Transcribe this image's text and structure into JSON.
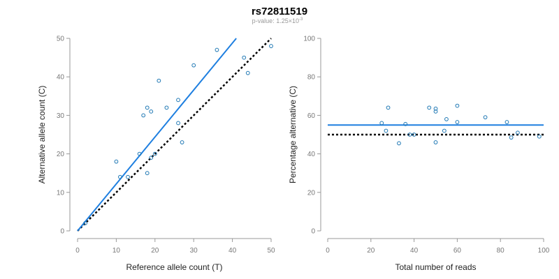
{
  "header": {
    "title": "rs72811519",
    "subtitle_prefix": "p-value: 1.25×10",
    "subtitle_exponent": "-3"
  },
  "colors": {
    "point": "#1f78b4",
    "fit_line": "#1e7fe0",
    "expected_line": "#000000"
  },
  "chart_data": [
    {
      "type": "scatter",
      "xlabel": "Reference allele count (T)",
      "ylabel": "Alternative allele count (C)",
      "xlim": [
        0,
        50
      ],
      "ylim": [
        0,
        50
      ],
      "xticks": [
        0,
        10,
        20,
        30,
        40,
        50
      ],
      "yticks": [
        0,
        10,
        20,
        30,
        40,
        50
      ],
      "points": [
        {
          "x": 2,
          "y": 2
        },
        {
          "x": 10,
          "y": 18
        },
        {
          "x": 11,
          "y": 14
        },
        {
          "x": 13,
          "y": 14
        },
        {
          "x": 16,
          "y": 20
        },
        {
          "x": 17,
          "y": 30
        },
        {
          "x": 18,
          "y": 32
        },
        {
          "x": 18,
          "y": 15
        },
        {
          "x": 19,
          "y": 31
        },
        {
          "x": 19,
          "y": 19
        },
        {
          "x": 20,
          "y": 20
        },
        {
          "x": 21,
          "y": 39
        },
        {
          "x": 23,
          "y": 32
        },
        {
          "x": 26,
          "y": 34
        },
        {
          "x": 26,
          "y": 28
        },
        {
          "x": 27,
          "y": 23
        },
        {
          "x": 30,
          "y": 43
        },
        {
          "x": 36,
          "y": 47
        },
        {
          "x": 43,
          "y": 45
        },
        {
          "x": 44,
          "y": 41
        },
        {
          "x": 50,
          "y": 48
        }
      ],
      "fit_line": {
        "x": [
          0,
          41
        ],
        "y": [
          0,
          50
        ]
      },
      "expected_line": {
        "x": [
          0,
          50
        ],
        "y": [
          0,
          50
        ]
      },
      "grid": false
    },
    {
      "type": "scatter",
      "xlabel": "Total number of reads",
      "ylabel": "Percentage alternative (C)",
      "xlim": [
        0,
        100
      ],
      "ylim": [
        0,
        100
      ],
      "xticks": [
        0,
        20,
        40,
        60,
        80,
        100
      ],
      "yticks": [
        0,
        20,
        40,
        60,
        80,
        100
      ],
      "points": [
        {
          "x": 25,
          "y": 56
        },
        {
          "x": 27,
          "y": 52
        },
        {
          "x": 28,
          "y": 64
        },
        {
          "x": 33,
          "y": 45.5
        },
        {
          "x": 36,
          "y": 55.5
        },
        {
          "x": 38,
          "y": 50
        },
        {
          "x": 40,
          "y": 50
        },
        {
          "x": 47,
          "y": 64
        },
        {
          "x": 50,
          "y": 62
        },
        {
          "x": 50,
          "y": 63.5
        },
        {
          "x": 50,
          "y": 46
        },
        {
          "x": 54,
          "y": 52
        },
        {
          "x": 55,
          "y": 58
        },
        {
          "x": 60,
          "y": 65
        },
        {
          "x": 60,
          "y": 56.5
        },
        {
          "x": 73,
          "y": 59
        },
        {
          "x": 83,
          "y": 56.5
        },
        {
          "x": 85,
          "y": 48.5
        },
        {
          "x": 88,
          "y": 51
        },
        {
          "x": 98,
          "y": 49
        }
      ],
      "fit_line": {
        "x": [
          0,
          100
        ],
        "y": [
          55,
          55
        ]
      },
      "expected_line": {
        "x": [
          0,
          100
        ],
        "y": [
          50,
          50
        ]
      },
      "grid": false
    }
  ]
}
